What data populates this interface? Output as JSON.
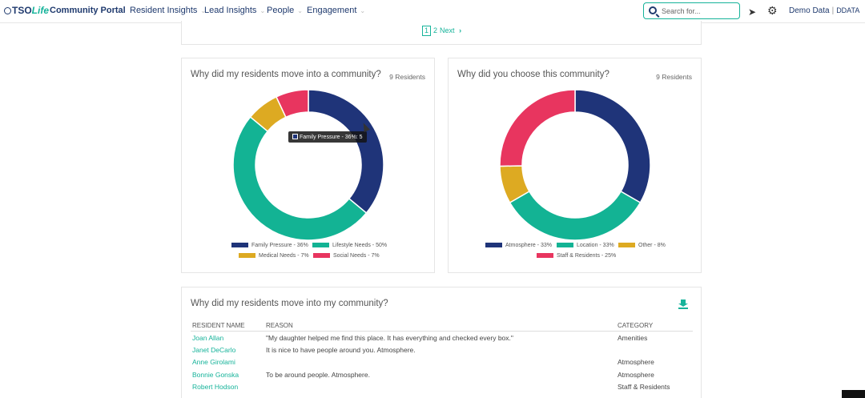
{
  "nav": {
    "logo_tso": "TSO",
    "logo_life": "Life",
    "portal_title": "Community Portal",
    "menus": [
      "Resident Insights",
      "Lead Insights",
      "People",
      "Engagement"
    ],
    "search_placeholder": "Search for...",
    "user_name": "Demo Data",
    "user_code": "DDATA"
  },
  "pager": {
    "current": "1",
    "page2": "2",
    "next": "Next"
  },
  "chart_left": {
    "title": "Why did my residents move into a community?",
    "count": "9 Residents",
    "tooltip": "Family Pressure - 36%: 5",
    "legend": [
      "Family Pressure - 36%",
      "Lifestyle Needs - 50%",
      "Medical Needs - 7%",
      "Social Needs - 7%"
    ]
  },
  "chart_right": {
    "title": "Why did you choose this community?",
    "count": "9 Residents",
    "legend": [
      "Atmosphere - 33%",
      "Location - 33%",
      "Other - 8%",
      "Staff & Residents - 25%"
    ]
  },
  "chart_data": [
    {
      "type": "pie",
      "categories": [
        "Family Pressure",
        "Lifestyle Needs",
        "Medical Needs",
        "Social Needs"
      ],
      "values": [
        36,
        50,
        7,
        7
      ],
      "colors": [
        "#1f3479",
        "#13b394",
        "#ddaa22",
        "#e8355f"
      ]
    },
    {
      "type": "pie",
      "categories": [
        "Atmosphere",
        "Location",
        "Other",
        "Staff & Residents"
      ],
      "values": [
        33,
        33,
        8,
        25
      ],
      "colors": [
        "#1f3479",
        "#13b394",
        "#ddaa22",
        "#e8355f"
      ]
    }
  ],
  "table": {
    "title": "Why did my residents move into my community?",
    "headers": [
      "RESIDENT NAME",
      "REASON",
      "CATEGORY"
    ],
    "rows": [
      {
        "name": "Joan Allan",
        "reason": "\"My daughter helped me find this place. It has everything and checked every box.\"",
        "category": "Amenities"
      },
      {
        "name": "Janet DeCarlo",
        "reason": "It is nice to have people around you. Atmosphere.",
        "category": ""
      },
      {
        "name": "Anne Girolami",
        "reason": "",
        "category": "Atmosphere"
      },
      {
        "name": "Bonnie Gonska",
        "reason": "To be around people. Atmosphere.",
        "category": "Atmosphere"
      },
      {
        "name": "Robert Hodson",
        "reason": "",
        "category": "Staff & Residents"
      }
    ]
  },
  "icons": {
    "search": "search-icon",
    "rocket": "rocket-icon",
    "gear": "gear-icon",
    "download": "download-icon"
  }
}
